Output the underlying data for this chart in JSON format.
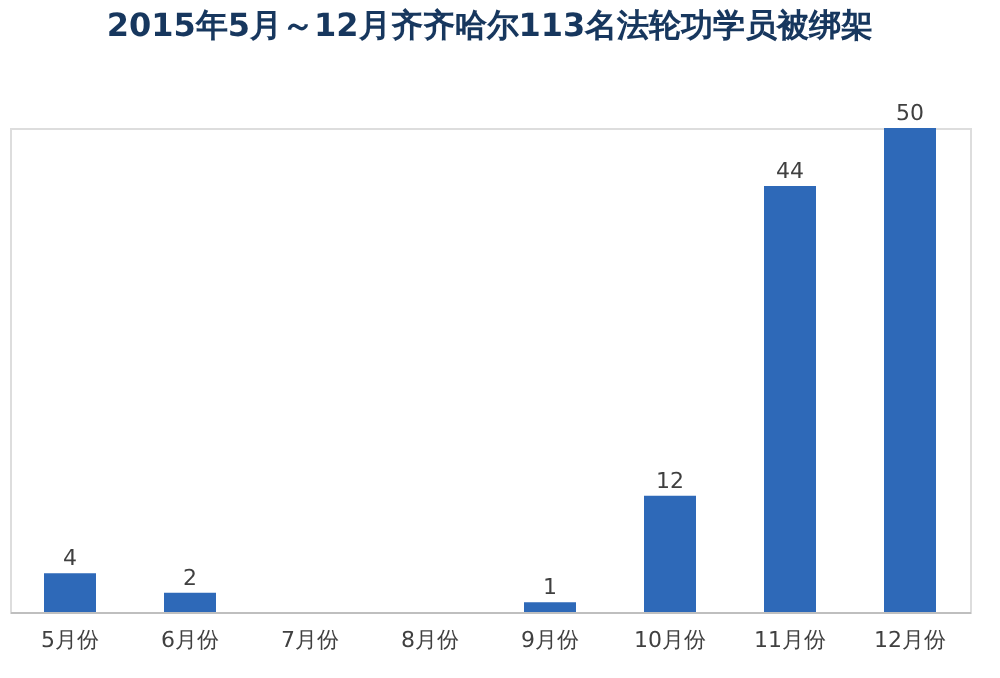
{
  "chart_data": {
    "type": "bar",
    "title": "2015年5月～12月齐齐哈尔113名法轮功学员被绑架",
    "categories": [
      "5月份",
      "6月份",
      "7月份",
      "8月份",
      "9月份",
      "10月份",
      "11月份",
      "12月份"
    ],
    "values": [
      4,
      2,
      0,
      0,
      1,
      12,
      44,
      50
    ],
    "value_labels": [
      "4",
      "2",
      null,
      null,
      "1",
      "12",
      "44",
      "50"
    ],
    "color": "#2e69b8",
    "grid": false
  }
}
